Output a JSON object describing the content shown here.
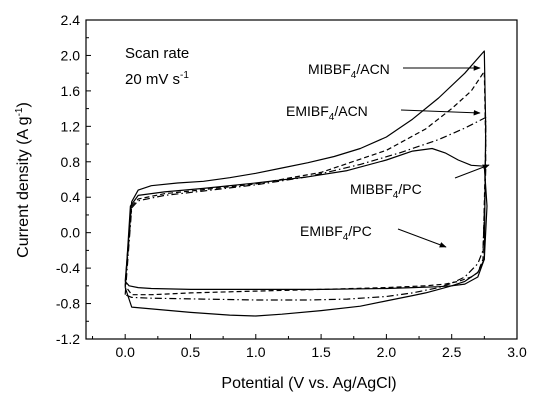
{
  "chart_data": {
    "type": "line",
    "xlabel": "Potential (V vs. Ag/AgCl)",
    "ylabel": "Current density (A g",
    "ylabel_sup": "-1",
    "ylabel_close": ")",
    "xlim": [
      -0.3,
      3.0
    ],
    "ylim": [
      -1.2,
      2.4
    ],
    "xticks": [
      "0.0",
      "0.5",
      "1.0",
      "1.5",
      "2.0",
      "2.5",
      "3.0"
    ],
    "yticks": [
      "-1.2",
      "-0.8",
      "-0.4",
      "0.0",
      "0.4",
      "0.8",
      "1.2",
      "1.6",
      "2.0",
      "2.4"
    ],
    "annotation_line1": "Scan rate",
    "annotation_line2": "20 mV s",
    "annotation_sup": "-1",
    "grid": false,
    "series": [
      {
        "name": "MIBBF4/ACN",
        "style": "solid",
        "label_parts": [
          "MIBBF",
          "4",
          "/ACN"
        ],
        "x": [
          0.0,
          0.05,
          0.1,
          0.2,
          0.4,
          0.6,
          0.8,
          1.0,
          1.2,
          1.4,
          1.6,
          1.8,
          2.0,
          2.2,
          2.4,
          2.6,
          2.75,
          2.76,
          2.75,
          2.7,
          2.6,
          2.5,
          2.4,
          2.2,
          2.0,
          1.5,
          1.0,
          0.5,
          0.2,
          0.1,
          0.03,
          0.0
        ],
        "y": [
          -0.55,
          0.35,
          0.48,
          0.53,
          0.56,
          0.58,
          0.62,
          0.67,
          0.73,
          0.79,
          0.86,
          0.95,
          1.08,
          1.28,
          1.52,
          1.8,
          2.05,
          1.2,
          -0.3,
          -0.5,
          -0.58,
          -0.6,
          -0.61,
          -0.62,
          -0.63,
          -0.64,
          -0.64,
          -0.64,
          -0.63,
          -0.62,
          -0.6,
          -0.55
        ]
      },
      {
        "name": "EMIBF4/ACN",
        "style": "dashed",
        "label_parts": [
          "EMIBF",
          "4",
          "/ACN"
        ],
        "x": [
          0.0,
          0.05,
          0.1,
          0.3,
          0.5,
          1.0,
          1.5,
          2.0,
          2.3,
          2.5,
          2.65,
          2.75,
          2.76,
          2.74,
          2.7,
          2.65,
          2.55,
          2.45,
          2.3,
          2.0,
          1.5,
          1.0,
          0.5,
          0.2,
          0.05,
          0.0
        ],
        "y": [
          -0.6,
          0.3,
          0.38,
          0.44,
          0.47,
          0.55,
          0.68,
          0.93,
          1.17,
          1.4,
          1.6,
          1.82,
          1.0,
          -0.3,
          -0.45,
          -0.5,
          -0.55,
          -0.58,
          -0.6,
          -0.62,
          -0.64,
          -0.66,
          -0.68,
          -0.7,
          -0.7,
          -0.6
        ]
      },
      {
        "name": "MIBBF4/PC",
        "style": "solid",
        "label_parts": [
          "MIBBF",
          "4",
          "/PC"
        ],
        "x": [
          0.0,
          0.04,
          0.1,
          0.3,
          0.6,
          1.0,
          1.4,
          1.7,
          2.0,
          2.2,
          2.35,
          2.45,
          2.55,
          2.65,
          2.75,
          2.77,
          2.75,
          2.7,
          2.6,
          2.5,
          2.4,
          2.3,
          2.2,
          2.0,
          1.8,
          1.5,
          1.2,
          1.0,
          0.8,
          0.5,
          0.2,
          0.05,
          0.0
        ],
        "y": [
          -0.62,
          0.3,
          0.42,
          0.46,
          0.5,
          0.56,
          0.63,
          0.7,
          0.82,
          0.92,
          0.95,
          0.9,
          0.82,
          0.76,
          0.75,
          0.3,
          -0.3,
          -0.45,
          -0.55,
          -0.6,
          -0.64,
          -0.68,
          -0.71,
          -0.77,
          -0.83,
          -0.88,
          -0.92,
          -0.94,
          -0.93,
          -0.9,
          -0.86,
          -0.84,
          -0.62
        ]
      },
      {
        "name": "EMIBF4/PC",
        "style": "dashdot",
        "label_parts": [
          "EMIBF",
          "4",
          "/PC"
        ],
        "x": [
          0.0,
          0.05,
          0.1,
          0.3,
          0.6,
          1.0,
          1.4,
          1.8,
          2.1,
          2.4,
          2.6,
          2.76,
          2.76,
          2.74,
          2.7,
          2.6,
          2.5,
          2.4,
          2.2,
          2.0,
          1.7,
          1.4,
          1.0,
          0.6,
          0.2,
          0.05,
          0.0
        ],
        "y": [
          -0.7,
          0.28,
          0.36,
          0.42,
          0.47,
          0.54,
          0.63,
          0.77,
          0.9,
          1.05,
          1.18,
          1.3,
          0.7,
          -0.2,
          -0.35,
          -0.5,
          -0.57,
          -0.62,
          -0.68,
          -0.72,
          -0.75,
          -0.76,
          -0.76,
          -0.75,
          -0.74,
          -0.73,
          -0.7
        ]
      }
    ]
  }
}
